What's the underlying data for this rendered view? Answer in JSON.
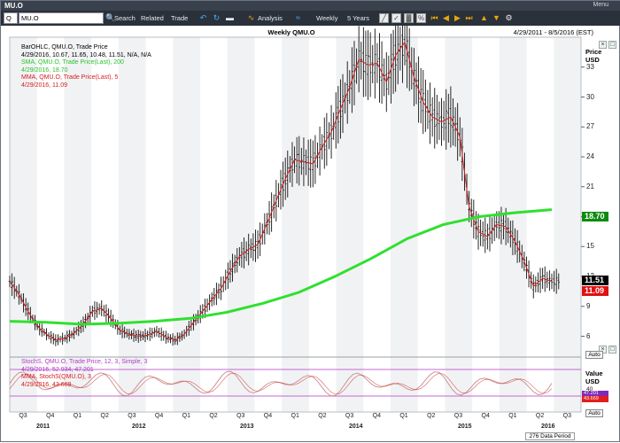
{
  "window": {
    "title": "MU.O",
    "menu_label": "Menu"
  },
  "toolbar": {
    "symbol_prefix": "Q",
    "symbol_value": "MU.O",
    "search_label": "Search",
    "related_label": "Related",
    "trade_label": "Trade",
    "analysis_label": "Analysis",
    "period_label": "Weekly",
    "range_label": "5 Years"
  },
  "chart": {
    "title": "Weekly QMU.O",
    "date_range": "4/29/2011 - 8/5/2016 (EST)",
    "price_axis_title": "Price",
    "price_axis_unit": "USD",
    "value_axis_title": "Value",
    "value_axis_unit": "USD",
    "auto_label": "Auto",
    "data_period_label": "276 Data Period",
    "price_ticks": [
      "33",
      "30",
      "27",
      "24",
      "21",
      "18",
      "15",
      "12",
      "9",
      "6"
    ],
    "stoch_ticks": [
      "40"
    ],
    "price_tags": {
      "last": "11.51",
      "sma": "18.70",
      "mma": "11.09"
    },
    "stoch_tags": {
      "k": "47.201",
      "d": "43.669"
    },
    "legend_main": [
      {
        "text": "BarOHLC, QMU.O, Trade Price",
        "color": "#111111"
      },
      {
        "text": "4/29/2016, 10.67, 11.65, 10.48, 11.51, N/A, N/A",
        "color": "#111111"
      },
      {
        "text": "SMA, QMU.O, Trade Price(Last),  200",
        "color": "#28c42a"
      },
      {
        "text": "4/29/2016, 18.70",
        "color": "#28c42a"
      },
      {
        "text": "MMA, QMU.O, Trade Price(Last),  5",
        "color": "#d41d1d"
      },
      {
        "text": "4/29/2016, 11.09",
        "color": "#d41d1d"
      }
    ],
    "legend_stoch": [
      {
        "text": "StochS, QMU.O, Trade Price,  12, 3, Simple, 3",
        "color": "#b33ac6"
      },
      {
        "text": "4/29/2016, 52.934, 47.201",
        "color": "#b33ac6"
      },
      {
        "text": "MMA, StochS(QMU.O),  3",
        "color": "#d41d1d"
      },
      {
        "text": "4/29/2016, 43.669",
        "color": "#d41d1d"
      }
    ],
    "x_quarters": [
      "Q3",
      "Q4",
      "Q1",
      "Q2",
      "Q3",
      "Q4",
      "Q1",
      "Q2",
      "Q3",
      "Q4",
      "Q1",
      "Q2",
      "Q3",
      "Q4",
      "Q1",
      "Q2",
      "Q3",
      "Q4",
      "Q1",
      "Q2",
      "Q3"
    ],
    "x_years": [
      "2011",
      "2012",
      "2013",
      "2014",
      "2015",
      "2016"
    ],
    "colors": {
      "bars": "#111111",
      "sma": "#2fe02f",
      "mma": "#d41d1d",
      "stoch": "#c38d8d",
      "stoch_band": "#b33ac6",
      "tag_last": "#000000",
      "tag_sma": "#0e8a10",
      "tag_mma": "#e01010",
      "tag_stoch_k": "#7f2bb5",
      "tag_stoch_d": "#e21f1f"
    }
  },
  "chart_data": {
    "type": "ohlc",
    "series": [
      {
        "name": "BarOHLC, QMU.O, Trade Price",
        "x": [
          "2011-05",
          "2011-06",
          "2011-07",
          "2011-08",
          "2011-09",
          "2011-10",
          "2011-11",
          "2011-12",
          "2012-01",
          "2012-02",
          "2012-03",
          "2012-04",
          "2012-05",
          "2012-06",
          "2012-07",
          "2012-08",
          "2012-09",
          "2012-10",
          "2012-11",
          "2012-12",
          "2013-01",
          "2013-02",
          "2013-03",
          "2013-04",
          "2013-05",
          "2013-06",
          "2013-07",
          "2013-08",
          "2013-09",
          "2013-10",
          "2013-11",
          "2013-12",
          "2014-01",
          "2014-02",
          "2014-03",
          "2014-04",
          "2014-05",
          "2014-06",
          "2014-07",
          "2014-08",
          "2014-09",
          "2014-10",
          "2014-11",
          "2014-12",
          "2015-01",
          "2015-02",
          "2015-03",
          "2015-04",
          "2015-05",
          "2015-06",
          "2015-07",
          "2015-08",
          "2015-09",
          "2015-10",
          "2015-11",
          "2015-12",
          "2016-01",
          "2016-02",
          "2016-03",
          "2016-04"
        ],
        "values": [
          11.5,
          10.2,
          8.5,
          7.0,
          6.2,
          5.6,
          5.8,
          6.3,
          7.2,
          8.5,
          8.8,
          7.8,
          6.6,
          6.2,
          6.0,
          6.1,
          6.5,
          5.9,
          5.6,
          6.2,
          7.4,
          8.5,
          9.7,
          10.8,
          12.5,
          14.0,
          14.7,
          15.2,
          17.3,
          19.6,
          21.8,
          23.7,
          23.5,
          23.3,
          25.0,
          26.5,
          28.8,
          31.0,
          33.8,
          33.2,
          33.4,
          31.5,
          34.2,
          35.5,
          32.0,
          29.5,
          28.0,
          27.5,
          28.0,
          26.0,
          19.0,
          16.5,
          16.0,
          17.2,
          17.0,
          15.5,
          13.5,
          11.0,
          11.8,
          11.51
        ]
      },
      {
        "name": "SMA, QMU.O, Trade Price(Last), 200",
        "x": [
          "2011-05",
          "2011-09",
          "2012-01",
          "2012-05",
          "2012-09",
          "2013-01",
          "2013-05",
          "2013-09",
          "2014-01",
          "2014-05",
          "2014-09",
          "2015-01",
          "2015-05",
          "2015-09",
          "2016-01",
          "2016-04"
        ],
        "values": [
          7.5,
          7.4,
          7.2,
          7.3,
          7.5,
          7.8,
          8.4,
          9.3,
          10.4,
          12.0,
          13.8,
          15.8,
          17.2,
          18.0,
          18.4,
          18.7
        ]
      },
      {
        "name": "MMA, QMU.O, Trade Price(Last), 5",
        "x": [
          "2016-04"
        ],
        "values": [
          11.09
        ]
      }
    ],
    "ylim": [
      4,
      36
    ],
    "yticks": [
      6,
      9,
      12,
      15,
      18,
      21,
      24,
      27,
      30,
      33
    ]
  }
}
